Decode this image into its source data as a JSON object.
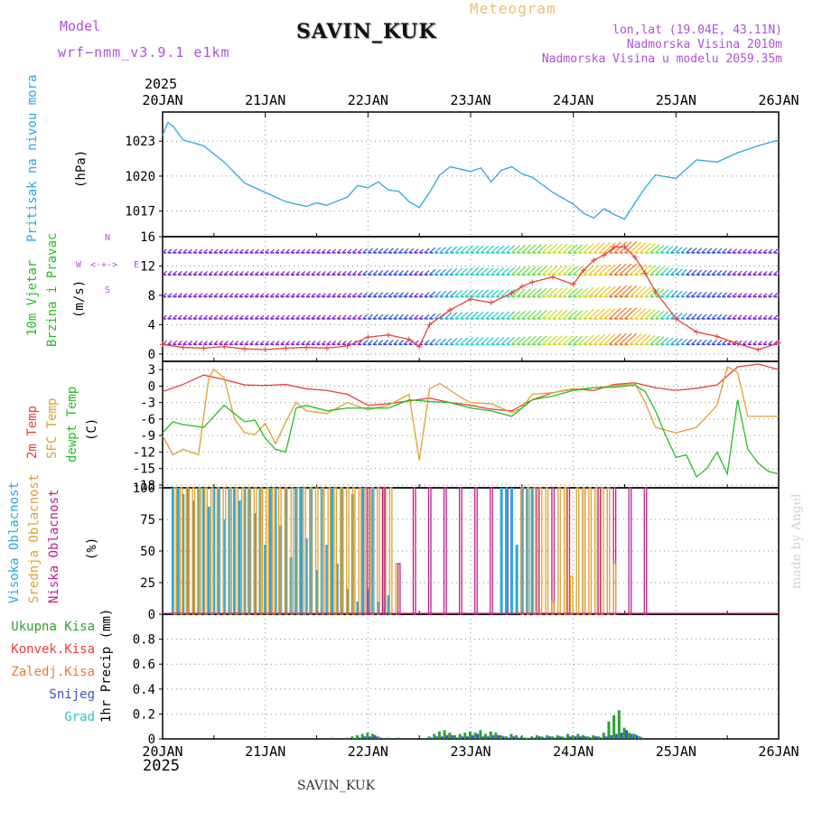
{
  "header": {
    "model_label": "Model",
    "model_name": "wrf−nmm_v3.9.1  e1km",
    "station": "SAVIN_KUK",
    "meteogram": "Meteogram",
    "coords": "lon,lat (19.04E, 43.11N)",
    "elevation": "Nadmorska Visina 2010m",
    "model_elevation": "Nadmorska Visina u modelu 2059.35m",
    "year_top": "2025",
    "year_bottom": "2025",
    "footer_station": "SAVIN_KUK",
    "credit": "made by Angel"
  },
  "colors": {
    "pressure": "#29a8e0",
    "temp2m": "#e8403a",
    "sfc": "#e0a030",
    "dewpt": "#22c022",
    "magenta": "#b050d8",
    "high_cloud": "#29a8e0",
    "mid_cloud": "#e0a030",
    "low_cloud": "#c0208a",
    "total_precip": "#2ea02e",
    "conv_precip": "#e8403a",
    "frozen_precip": "#f07830",
    "snow": "#3a50d8",
    "hail": "#30c0c0"
  },
  "chart_data": [
    {
      "type": "line",
      "panel": "pressure",
      "ylabel_a": "Pritisak na nivou mora",
      "ylabel_b": "(hPa)",
      "x_labels": [
        "20JAN",
        "21JAN",
        "22JAN",
        "23JAN",
        "24JAN",
        "25JAN",
        "26JAN"
      ],
      "x_range_days": [
        0,
        6
      ],
      "ylim": [
        1014.8,
        1025.5
      ],
      "yticks": [
        1017,
        1020,
        1023
      ],
      "series": [
        {
          "x": [
            0,
            0.05,
            0.1,
            0.2,
            0.4,
            0.6,
            0.8,
            1.0,
            1.2,
            1.4,
            1.5,
            1.6,
            1.8,
            1.9,
            2.0,
            2.1,
            2.2,
            2.3,
            2.4,
            2.5,
            2.6,
            2.7,
            2.8,
            3.0,
            3.1,
            3.2,
            3.3,
            3.4,
            3.5,
            3.6,
            3.8,
            4.0,
            4.1,
            4.2,
            4.3,
            4.4,
            4.5,
            4.6,
            4.7,
            4.8,
            5.0,
            5.2,
            5.4,
            5.6,
            5.8,
            6.0
          ],
          "y": [
            1023.5,
            1024.6,
            1024.3,
            1023.1,
            1022.6,
            1021.2,
            1019.4,
            1018.6,
            1017.8,
            1017.4,
            1017.7,
            1017.5,
            1018.2,
            1019.2,
            1019.0,
            1019.5,
            1018.8,
            1018.7,
            1017.8,
            1017.3,
            1018.6,
            1020.1,
            1020.8,
            1020.4,
            1020.7,
            1019.5,
            1020.5,
            1020.8,
            1020.2,
            1019.9,
            1018.6,
            1017.6,
            1016.8,
            1016.4,
            1017.2,
            1016.7,
            1016.3,
            1017.7,
            1019.0,
            1020.1,
            1019.8,
            1021.4,
            1021.2,
            1022.0,
            1022.6,
            1023.1
          ]
        }
      ]
    },
    {
      "type": "scatter",
      "panel": "wind",
      "ylabel_a": "10m Vjetar",
      "ylabel_b": "Brzina i Pravac",
      "ylabel_c": "(m/s)",
      "compass": {
        "n": "N",
        "s": "S",
        "w": "W",
        "e": "E"
      },
      "ylim": [
        -1,
        16
      ],
      "yticks": [
        0,
        4,
        8,
        12,
        16
      ],
      "speed_x": [
        0,
        0.2,
        0.4,
        0.6,
        0.8,
        1.0,
        1.2,
        1.4,
        1.6,
        1.8,
        2.0,
        2.2,
        2.4,
        2.5,
        2.6,
        2.8,
        3.0,
        3.2,
        3.4,
        3.5,
        3.6,
        3.8,
        4.0,
        4.1,
        4.2,
        4.3,
        4.4,
        4.5,
        4.6,
        4.7,
        4.8,
        5.0,
        5.2,
        5.4,
        5.6,
        5.8,
        6.0
      ],
      "speed_y": [
        1.3,
        0.9,
        0.8,
        1.0,
        0.7,
        0.6,
        0.8,
        0.9,
        0.8,
        1.1,
        2.3,
        2.6,
        2.0,
        1.0,
        4.0,
        6.0,
        7.5,
        7.0,
        8.3,
        9.2,
        9.8,
        10.5,
        9.5,
        11.4,
        12.8,
        13.5,
        14.6,
        14.6,
        13.2,
        11.0,
        8.5,
        4.8,
        3.0,
        2.4,
        1.4,
        0.6,
        1.5
      ]
    },
    {
      "type": "line",
      "panel": "temperature",
      "ylabel_a": "2m Temp",
      "ylabel_b": "SFC Temp",
      "ylabel_c": "dewpt Temp",
      "ylabel_d": "(C)",
      "ylim": [
        -18.5,
        4.5
      ],
      "yticks": [
        3,
        0,
        -3,
        -6,
        -9,
        -12,
        -15,
        -18
      ],
      "series": [
        {
          "name": "2m Temp",
          "x": [
            0,
            0.2,
            0.4,
            0.6,
            0.8,
            1.0,
            1.2,
            1.4,
            1.6,
            1.8,
            2.0,
            2.2,
            2.4,
            2.6,
            2.8,
            3.0,
            3.2,
            3.4,
            3.6,
            3.8,
            4.0,
            4.2,
            4.4,
            4.6,
            4.8,
            5.0,
            5.2,
            5.4,
            5.6,
            5.8,
            6.0
          ],
          "y": [
            -1.0,
            0.3,
            2.0,
            1.2,
            0.2,
            0.1,
            0.3,
            -0.5,
            -0.8,
            -1.5,
            -3.5,
            -3.2,
            -2.7,
            -2.2,
            -3.0,
            -3.5,
            -4.2,
            -4.5,
            -2.5,
            -1.2,
            -0.5,
            -0.8,
            0.3,
            0.6,
            -0.3,
            -0.8,
            -0.4,
            0.2,
            3.5,
            4.0,
            3.0
          ]
        },
        {
          "name": "SFC Temp",
          "x": [
            0,
            0.1,
            0.2,
            0.35,
            0.45,
            0.5,
            0.6,
            0.7,
            0.8,
            0.9,
            1.0,
            1.1,
            1.2,
            1.3,
            1.4,
            1.6,
            1.8,
            2.0,
            2.2,
            2.4,
            2.5,
            2.6,
            2.7,
            2.9,
            3.0,
            3.2,
            3.4,
            3.5,
            3.6,
            3.8,
            4.0,
            4.2,
            4.4,
            4.6,
            4.7,
            4.8,
            5.0,
            5.2,
            5.4,
            5.5,
            5.6,
            5.7,
            5.8,
            6.0
          ],
          "y": [
            -9,
            -12.5,
            -11.5,
            -12.5,
            1.5,
            3.0,
            1.5,
            -6.0,
            -8.5,
            -8.8,
            -6.8,
            -10.5,
            -6.5,
            -3.0,
            -4.5,
            -5.0,
            -3.0,
            -4.3,
            -3.5,
            -1.5,
            -13.5,
            -0.5,
            0.5,
            -2.0,
            -3.0,
            -3.2,
            -4.8,
            -4.0,
            -1.5,
            -1.2,
            -0.6,
            -0.3,
            0.0,
            0.5,
            -3.0,
            -7.5,
            -8.5,
            -7.5,
            -3.5,
            3.5,
            2.5,
            -5.5,
            -5.5,
            -5.5
          ]
        },
        {
          "name": "dewpt Temp",
          "x": [
            0,
            0.1,
            0.2,
            0.4,
            0.6,
            0.8,
            0.9,
            1.0,
            1.1,
            1.2,
            1.3,
            1.4,
            1.6,
            1.8,
            2.0,
            2.2,
            2.4,
            2.6,
            2.8,
            3.0,
            3.2,
            3.4,
            3.6,
            3.8,
            4.0,
            4.2,
            4.4,
            4.6,
            4.7,
            4.8,
            4.9,
            5.0,
            5.1,
            5.2,
            5.3,
            5.4,
            5.5,
            5.6,
            5.7,
            5.8,
            5.9,
            6.0
          ],
          "y": [
            -8.5,
            -6.5,
            -7.0,
            -7.5,
            -3.5,
            -6.5,
            -6.2,
            -9.5,
            -11.5,
            -12.0,
            -4.0,
            -3.5,
            -4.5,
            -4.0,
            -4.0,
            -4.0,
            -2.5,
            -2.8,
            -3.0,
            -4.0,
            -4.5,
            -5.5,
            -2.5,
            -1.8,
            -0.8,
            -0.3,
            -0.2,
            0.2,
            -1.0,
            -4.5,
            -9.0,
            -13.0,
            -12.5,
            -16.5,
            -15.0,
            -12.0,
            -16.0,
            -2.5,
            -11.5,
            -14.0,
            -15.5,
            -16.0
          ]
        }
      ]
    },
    {
      "type": "bar",
      "panel": "clouds",
      "ylabel_a": "Visoka Oblacnost",
      "ylabel_b": "Srednja Oblacnost",
      "ylabel_c": "Niska Oblacnost",
      "ylabel_d": "(%)",
      "ylim": [
        0,
        100
      ],
      "yticks": [
        0,
        25,
        50,
        75,
        100
      ],
      "segments": [
        {
          "name": "high",
          "x_start": 0.1,
          "x_end": 2.2,
          "step": 0.05,
          "values": [
            100,
            100,
            95,
            100,
            90,
            100,
            100,
            85,
            100,
            100,
            75,
            100,
            100,
            90,
            100,
            100,
            80,
            100,
            55,
            100,
            100,
            70,
            100,
            45,
            100,
            100,
            60,
            100,
            35,
            100,
            55,
            100,
            40,
            100,
            20,
            95,
            10,
            100,
            20,
            100,
            10,
            5,
            15
          ]
        },
        {
          "name": "mid",
          "x_start": 0.12,
          "x_end": 2.3,
          "step": 0.06,
          "values": [
            100,
            100,
            100,
            100,
            100,
            100,
            100,
            100,
            100,
            100,
            100,
            100,
            100,
            100,
            100,
            100,
            100,
            100,
            100,
            100,
            100,
            100,
            100,
            100,
            100,
            100,
            100,
            100,
            100,
            100,
            100,
            100,
            100,
            100,
            100,
            100,
            40
          ]
        },
        {
          "name": "low",
          "x_start": 2.0,
          "x_end": 4.7,
          "step": 0.15,
          "values": [
            100,
            100,
            40,
            100,
            100,
            100,
            100,
            100,
            100,
            100,
            100,
            100,
            100,
            100,
            100,
            100,
            100,
            100,
            100
          ]
        },
        {
          "name": "high",
          "x_start": 3.3,
          "x_end": 3.6,
          "step": 0.05,
          "values": [
            100,
            100,
            100,
            55,
            100,
            100,
            100
          ]
        },
        {
          "name": "mid",
          "x_start": 3.5,
          "x_end": 4.4,
          "step": 0.06,
          "values": [
            100,
            100,
            100,
            100,
            100,
            10,
            100,
            100,
            30,
            100,
            100,
            100,
            100,
            100,
            100,
            40
          ]
        }
      ]
    },
    {
      "type": "bar",
      "panel": "precip",
      "ylabel_a": "1hr Precip (mm)",
      "legend": [
        "Ukupna Kisa",
        "Konvek.Kisa",
        "Zaledj.Kisa",
        "Snijeg",
        "Grad"
      ],
      "ylim": [
        0,
        1.0
      ],
      "yticks": [
        0,
        0.2,
        0.4,
        0.6,
        0.8
      ],
      "x": [
        1.65,
        1.8,
        1.85,
        1.9,
        1.95,
        2.0,
        2.05,
        2.1,
        2.2,
        2.3,
        2.6,
        2.65,
        2.7,
        2.75,
        2.8,
        2.85,
        2.9,
        2.95,
        3.0,
        3.05,
        3.1,
        3.15,
        3.2,
        3.25,
        3.3,
        3.35,
        3.4,
        3.45,
        3.5,
        3.55,
        3.6,
        3.65,
        3.7,
        3.75,
        3.8,
        3.85,
        3.9,
        3.95,
        4.0,
        4.05,
        4.1,
        4.15,
        4.2,
        4.25,
        4.3,
        4.35,
        4.4,
        4.45,
        4.5,
        4.55,
        4.6,
        4.65
      ],
      "total": [
        0.01,
        0.01,
        0.02,
        0.03,
        0.04,
        0.05,
        0.04,
        0.02,
        0.01,
        0.01,
        0.02,
        0.04,
        0.06,
        0.07,
        0.05,
        0.03,
        0.04,
        0.05,
        0.06,
        0.05,
        0.07,
        0.04,
        0.06,
        0.05,
        0.03,
        0.02,
        0.04,
        0.03,
        0.02,
        0.01,
        0.02,
        0.03,
        0.02,
        0.03,
        0.02,
        0.03,
        0.02,
        0.04,
        0.03,
        0.04,
        0.03,
        0.02,
        0.03,
        0.02,
        0.05,
        0.14,
        0.19,
        0.23,
        0.09,
        0.05,
        0.04,
        0.02
      ],
      "snow": [
        0,
        0,
        0,
        0.01,
        0.02,
        0.02,
        0.03,
        0.01,
        0,
        0,
        0.01,
        0.02,
        0.02,
        0.03,
        0.03,
        0.01,
        0.02,
        0.02,
        0.03,
        0.04,
        0.02,
        0.02,
        0.03,
        0.03,
        0.02,
        0.01,
        0.02,
        0.01,
        0.01,
        0,
        0.01,
        0.02,
        0.01,
        0.02,
        0.01,
        0.02,
        0.01,
        0.02,
        0.02,
        0.02,
        0.02,
        0.01,
        0.02,
        0.01,
        0.02,
        0.03,
        0.04,
        0.05,
        0.07,
        0.04,
        0.03,
        0.01
      ]
    }
  ]
}
